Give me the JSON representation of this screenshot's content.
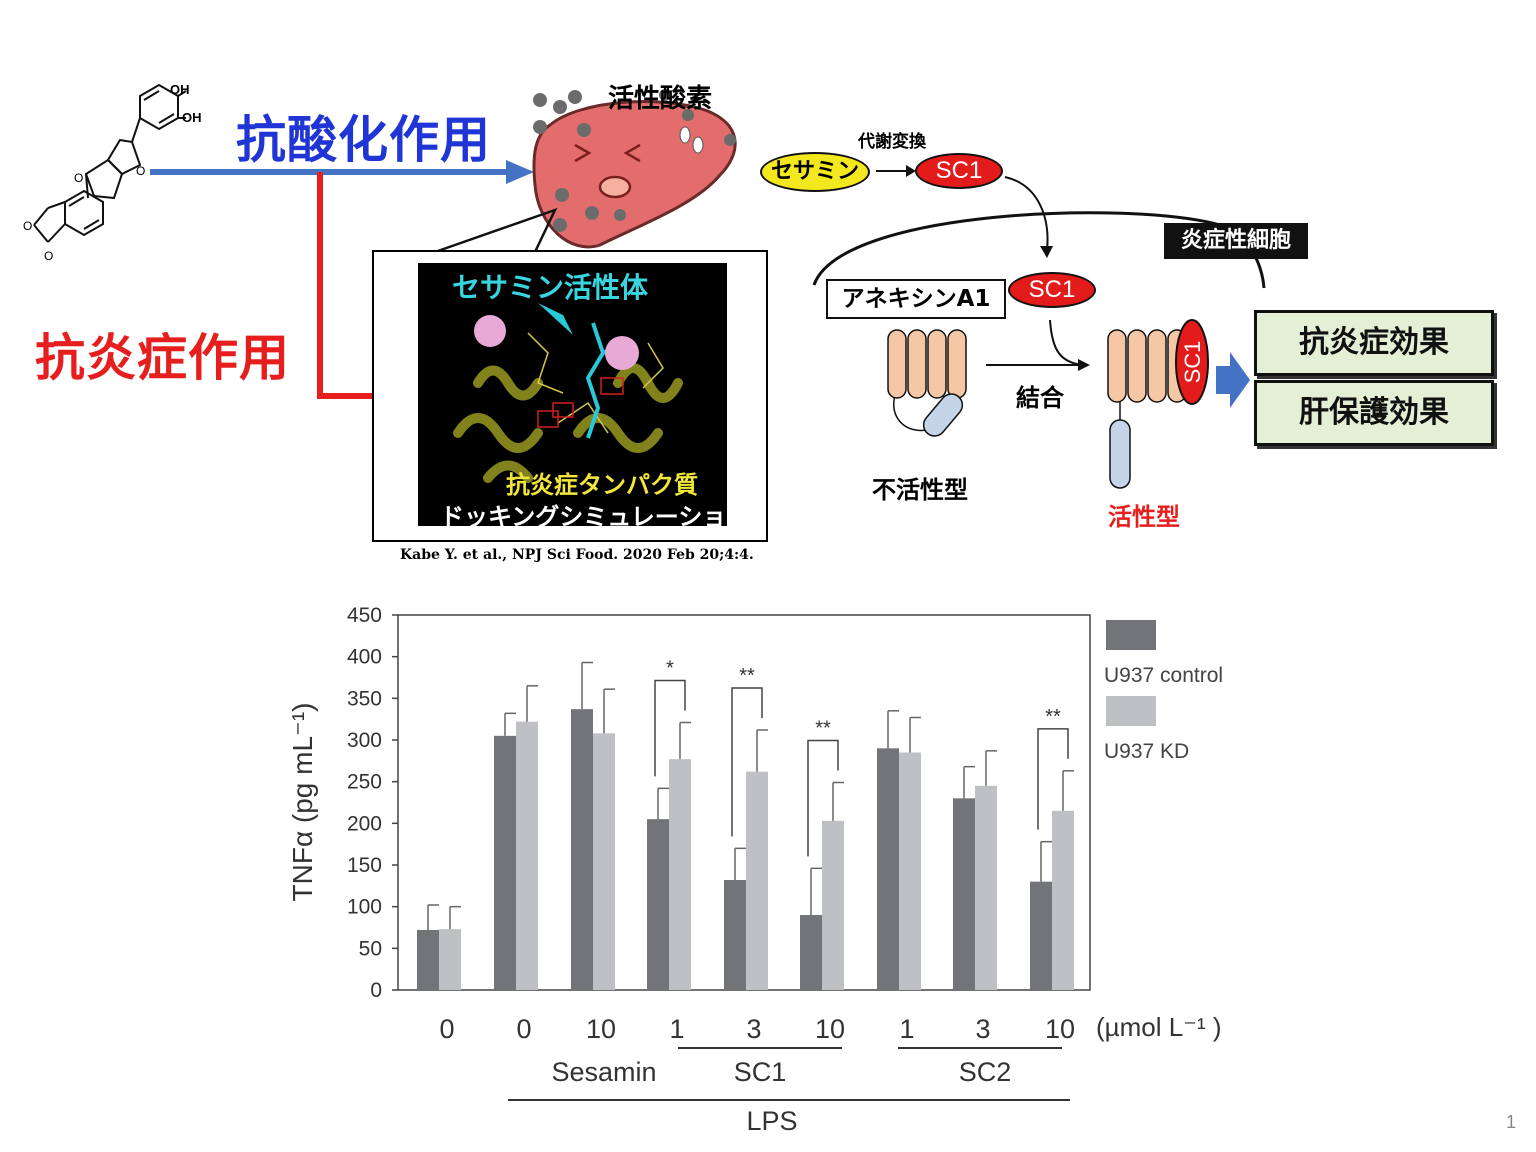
{
  "mechanism": {
    "antioxidant_label": "抗酸化作用",
    "antiinflammatory_label": "抗炎症作用",
    "ros_label": "活性酸素",
    "metabolic_label": "代謝変換",
    "sesamin_label": "セサミン",
    "sc1_label": "SC1",
    "inflam_cell_label": "炎症性細胞",
    "annexin_label": "アネキシンA1",
    "binding_label": "結合",
    "inactive_label": "不活性型",
    "active_label": "活性型",
    "effect1": "抗炎症効果",
    "effect2": "肝保護効果",
    "molecule_oh1": "OH",
    "molecule_oh2": "OH",
    "molecule_o1": "O",
    "molecule_o2": "O",
    "molecule_o3": "O",
    "molecule_o4": "O",
    "docking_title": "セサミン活性体",
    "docking_caption1": "抗炎症タンパク質",
    "docking_caption2": "ドッキングシミュレーション",
    "citation": "Kabe Y. et al., NPJ Sci Food. 2020 Feb 20;4:4."
  },
  "chart_data": {
    "type": "bar",
    "ylabel": "TNFα (pg mL⁻¹)",
    "ylim": [
      0,
      450
    ],
    "yticks": [
      0,
      50,
      100,
      150,
      200,
      250,
      300,
      350,
      400,
      450
    ],
    "categories": [
      "0",
      "0",
      "10",
      "1",
      "3",
      "10",
      "1",
      "3",
      "10"
    ],
    "unit_label": "(µmol L⁻¹ )",
    "group_labels": [
      "Sesamin",
      "SC1",
      "SC2",
      "LPS"
    ],
    "series": [
      {
        "name": "U937 control",
        "color": "#737478",
        "values": [
          72,
          305,
          337,
          205,
          132,
          90,
          290,
          230,
          130
        ],
        "errors": [
          30,
          27,
          56,
          37,
          38,
          56,
          45,
          38,
          48
        ]
      },
      {
        "name": "U937 KD",
        "color": "#bfc0c4",
        "values": [
          73,
          322,
          308,
          277,
          262,
          203,
          285,
          245,
          215
        ],
        "errors": [
          27,
          43,
          53,
          44,
          50,
          46,
          42,
          42,
          48
        ]
      }
    ],
    "significance": [
      {
        "index": 3,
        "label": "*"
      },
      {
        "index": 4,
        "label": "**"
      },
      {
        "index": 5,
        "label": "**"
      },
      {
        "index": 8,
        "label": "**"
      }
    ]
  },
  "page_number": "1"
}
